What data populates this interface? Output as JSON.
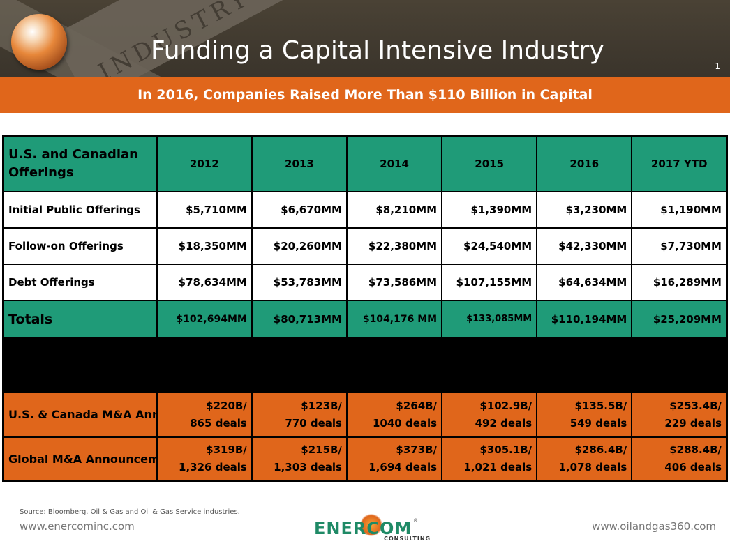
{
  "header": {
    "title": "Funding a Capital Intensive Industry",
    "page_number": "1",
    "background_word": "INDUSTRY"
  },
  "banner": {
    "text": "In 2016, Companies Raised More Than $110 Billion in Capital"
  },
  "table": {
    "corner_label": "U.S. and Canadian Offerings",
    "years": [
      "2012",
      "2013",
      "2014",
      "2015",
      "2016",
      "2017 YTD"
    ],
    "rows": [
      {
        "label": "Initial Public Offerings",
        "values": [
          "$5,710MM",
          "$6,670MM",
          "$8,210MM",
          "$1,390MM",
          "$3,230MM",
          "$1,190MM"
        ]
      },
      {
        "label": "Follow-on Offerings",
        "values": [
          "$18,350MM",
          "$20,260MM",
          "$22,380MM",
          "$24,540MM",
          "$42,330MM",
          "$7,730MM"
        ]
      },
      {
        "label": "Debt Offerings",
        "values": [
          "$78,634MM",
          "$53,783MM",
          "$73,586MM",
          "$107,155MM",
          "$64,634MM",
          "$16,289MM"
        ]
      }
    ],
    "totals": {
      "label": "Totals",
      "values": [
        "$102,694MM",
        "$80,713MM",
        "$104,176 MM",
        "$133,085MM",
        "$110,194MM",
        "$25,209MM"
      ]
    },
    "ma_rows": [
      {
        "label": "U.S. & Canada M&A Announcements",
        "values": [
          [
            "$220B/",
            "865 deals"
          ],
          [
            "$123B/",
            "770 deals"
          ],
          [
            "$264B/",
            "1040 deals"
          ],
          [
            "$102.9B/",
            "492 deals"
          ],
          [
            "$135.5B/",
            "549 deals"
          ],
          [
            "$253.4B/",
            "229 deals"
          ]
        ]
      },
      {
        "label": "Global M&A Announcements",
        "values": [
          [
            "$319B/",
            "1,326 deals"
          ],
          [
            "$215B/",
            "1,303 deals"
          ],
          [
            "$373B/",
            "1,694 deals"
          ],
          [
            "$305.1B/",
            "1,021 deals"
          ],
          [
            "$286.4B/",
            "1,078 deals"
          ],
          [
            "$288.4B/",
            "406 deals"
          ]
        ]
      }
    ]
  },
  "footer": {
    "source": "Source: Bloomberg.  Oil & Gas and Oil & Gas Service industries.",
    "url_left": "www.enercominc.com",
    "url_right": "www.oilandgas360.com",
    "logo_word": "ENERCOM",
    "logo_sub": "CONSULTING",
    "logo_reg": "®"
  },
  "colors": {
    "header_bg": "#3a342b",
    "accent_orange": "#e0661b",
    "table_green": "#1f9b78"
  }
}
